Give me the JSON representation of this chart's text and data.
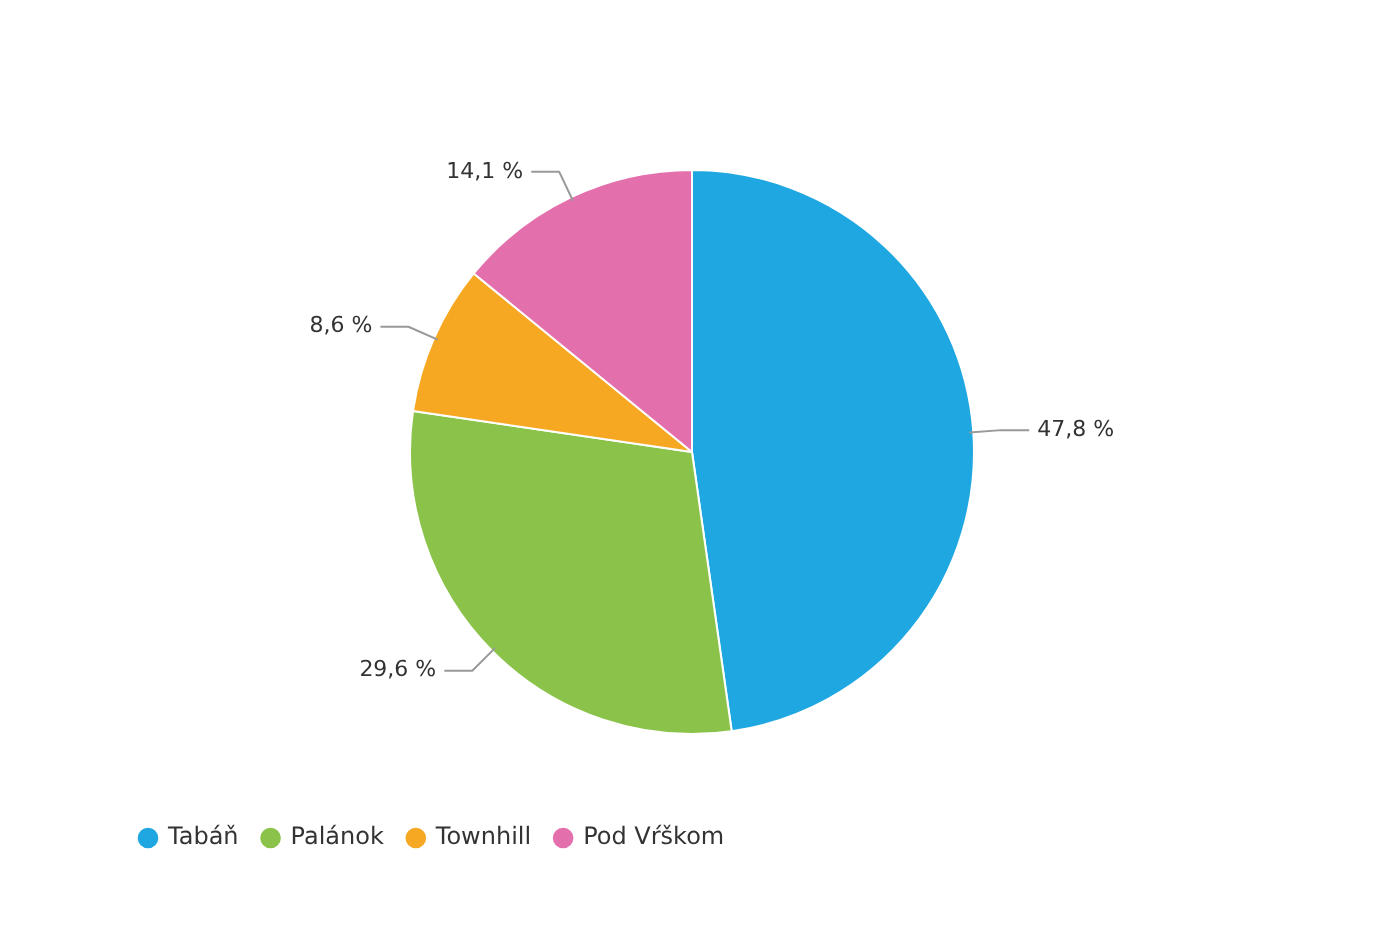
{
  "chart_data": {
    "type": "pie",
    "categories": [
      "Tabáň",
      "Palánok",
      "Townhill",
      "Pod Vŕškom"
    ],
    "values": [
      47.8,
      29.6,
      8.6,
      14.1
    ],
    "colors": [
      "#1ea7e1",
      "#8bc34a",
      "#f7a823",
      "#e46fad"
    ],
    "value_labels": [
      "47,8 %",
      "29,6 %",
      "8,6 %",
      "14,1 %"
    ],
    "legend": "bottom left"
  }
}
